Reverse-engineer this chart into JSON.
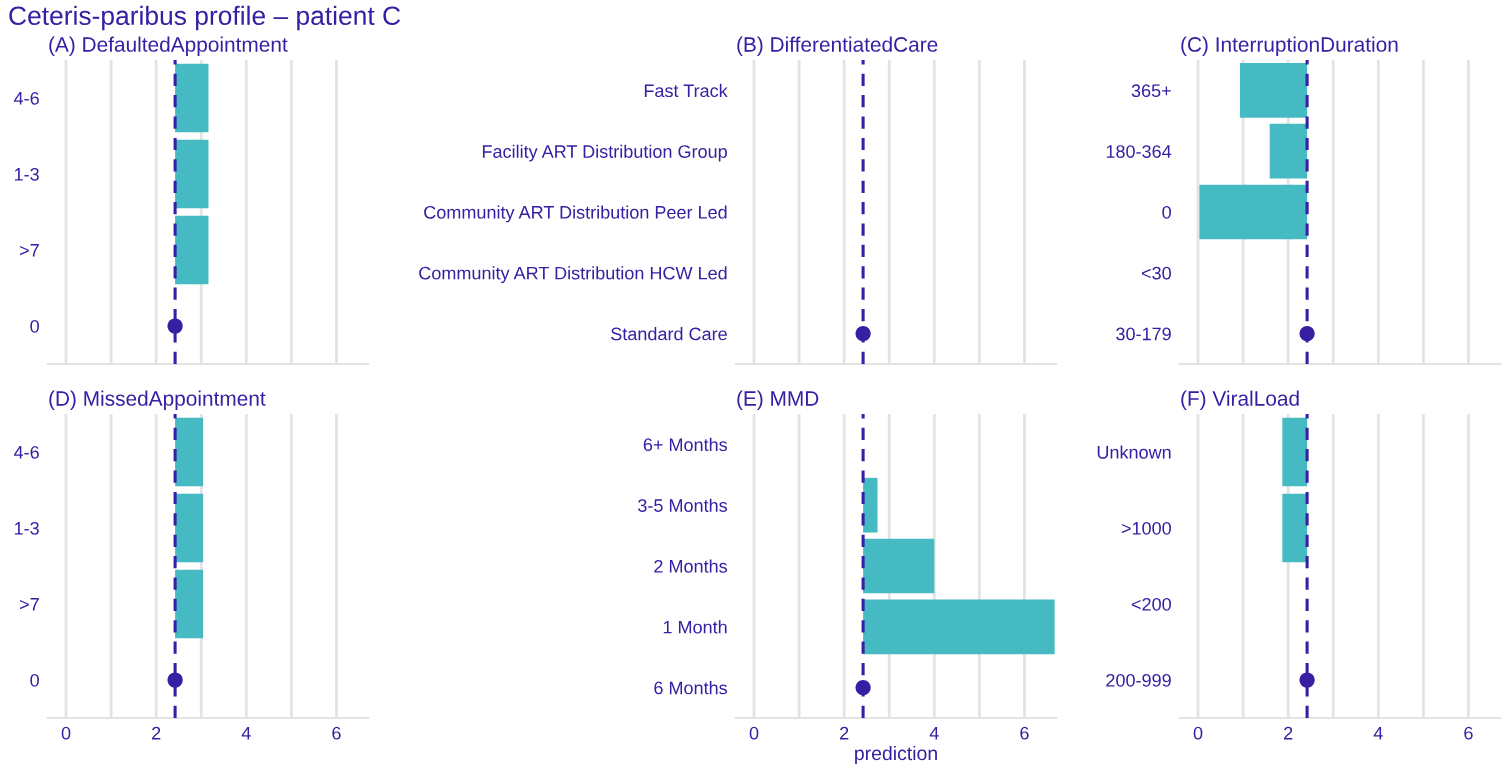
{
  "chart_data": [
    {
      "type": "bar",
      "orientation": "horizontal",
      "title": "(A) DefaultedAppointment",
      "annotations": [
        "Ceteris-paribus profile – patient C"
      ],
      "categories": [
        "4-6",
        "1-3",
        ">7",
        "0"
      ],
      "series": [
        {
          "color": "#46bac2",
          "base": [
            2.42,
            2.42,
            2.42,
            null
          ],
          "values": [
            0.74,
            0.74,
            0.74,
            null
          ]
        },
        {
          "type": "scatter",
          "color": "#371ea3",
          "values": [
            null,
            null,
            null,
            2.42
          ]
        }
      ],
      "xlim": [
        -0.4,
        6.7
      ],
      "xticks": [
        0,
        {
          "value": 1,
          "label": null
        },
        2,
        {
          "value": 3,
          "label": null
        },
        4,
        {
          "value": 5,
          "label": null
        },
        6
      ],
      "grid": "x",
      "tick_labels": "y",
      "ref_lines": [
        {
          "axis": "x",
          "value": 2.42,
          "color": "#371ea3",
          "line_style": "dashed"
        }
      ]
    },
    {
      "type": "bar",
      "orientation": "horizontal",
      "title": "(B) DifferentiatedCare",
      "categories": [
        "Fast Track",
        "Facility ART Distribution Group",
        "Community ART Distribution Peer Led",
        "Community ART Distribution HCW Led",
        "Standard Care"
      ],
      "series": [
        {
          "type": "scatter",
          "color": "#371ea3",
          "values": [
            null,
            null,
            null,
            null,
            2.42
          ]
        }
      ],
      "xlim": [
        -0.4,
        6.7
      ],
      "xticks": [
        0,
        {
          "value": 1,
          "label": null
        },
        2,
        {
          "value": 3,
          "label": null
        },
        4,
        {
          "value": 5,
          "label": null
        },
        6
      ],
      "grid": "x",
      "tick_labels": "y",
      "ref_lines": [
        {
          "axis": "x",
          "value": 2.42,
          "color": "#371ea3",
          "line_style": "dashed"
        }
      ]
    },
    {
      "type": "bar",
      "orientation": "horizontal",
      "title": "(C) InterruptionDuration",
      "categories": [
        "365+",
        "180-364",
        "0",
        "<30",
        "30-179"
      ],
      "series": [
        {
          "color": "#46bac2",
          "base": [
            0.93,
            1.59,
            0.03,
            null,
            null
          ],
          "values": [
            1.49,
            0.83,
            2.39,
            null,
            null
          ]
        },
        {
          "type": "scatter",
          "color": "#371ea3",
          "values": [
            null,
            null,
            null,
            null,
            2.42
          ]
        }
      ],
      "xlim": [
        -0.4,
        6.7
      ],
      "xticks": [
        0,
        {
          "value": 1,
          "label": null
        },
        2,
        {
          "value": 3,
          "label": null
        },
        4,
        {
          "value": 5,
          "label": null
        },
        6
      ],
      "grid": "x",
      "tick_labels": "y",
      "ref_lines": [
        {
          "axis": "x",
          "value": 2.42,
          "color": "#371ea3",
          "line_style": "dashed"
        }
      ]
    },
    {
      "type": "bar",
      "orientation": "horizontal",
      "title": "(D) MissedAppointment",
      "categories": [
        "4-6",
        "1-3",
        ">7",
        "0"
      ],
      "series": [
        {
          "color": "#46bac2",
          "base": [
            2.42,
            2.42,
            2.42,
            null
          ],
          "values": [
            0.62,
            0.62,
            0.62,
            null
          ]
        },
        {
          "type": "scatter",
          "color": "#371ea3",
          "values": [
            null,
            null,
            null,
            2.42
          ]
        }
      ],
      "xlim": [
        -0.4,
        6.7
      ],
      "xticks": [
        0,
        {
          "value": 1,
          "label": null
        },
        2,
        {
          "value": 3,
          "label": null
        },
        4,
        {
          "value": 5,
          "label": null
        },
        6
      ],
      "grid": "x",
      "ref_lines": [
        {
          "axis": "x",
          "value": 2.42,
          "color": "#371ea3",
          "line_style": "dashed"
        }
      ]
    },
    {
      "type": "bar",
      "orientation": "horizontal",
      "title": "(E) MMD",
      "xlabel": "prediction",
      "categories": [
        "6+ Months",
        "3-5 Months",
        "2 Months",
        "1 Month",
        "6 Months"
      ],
      "series": [
        {
          "color": "#46bac2",
          "base": [
            null,
            2.42,
            2.42,
            2.42,
            null
          ],
          "values": [
            null,
            0.32,
            1.58,
            4.25,
            null
          ]
        },
        {
          "type": "scatter",
          "color": "#371ea3",
          "values": [
            null,
            null,
            null,
            null,
            2.42
          ]
        }
      ],
      "xlim": [
        -0.4,
        6.7
      ],
      "xticks": [
        0,
        {
          "value": 1,
          "label": null
        },
        2,
        {
          "value": 3,
          "label": null
        },
        4,
        {
          "value": 5,
          "label": null
        },
        6
      ],
      "grid": "x",
      "ref_lines": [
        {
          "axis": "x",
          "value": 2.42,
          "color": "#371ea3",
          "line_style": "dashed"
        }
      ]
    },
    {
      "type": "bar",
      "orientation": "horizontal",
      "title": "(F) ViralLoad",
      "categories": [
        "Unknown",
        ">1000",
        "<200",
        "200-999"
      ],
      "series": [
        {
          "color": "#46bac2",
          "base": [
            1.87,
            1.87,
            null,
            null
          ],
          "values": [
            0.55,
            0.55,
            null,
            null
          ]
        },
        {
          "type": "scatter",
          "color": "#371ea3",
          "values": [
            null,
            null,
            null,
            2.42
          ]
        }
      ],
      "xlim": [
        -0.4,
        6.7
      ],
      "xticks": [
        0,
        {
          "value": 1,
          "label": null
        },
        2,
        {
          "value": 3,
          "label": null
        },
        4,
        {
          "value": 5,
          "label": null
        },
        6
      ],
      "grid": "x",
      "ref_lines": [
        {
          "axis": "x",
          "value": 2.42,
          "color": "#371ea3",
          "line_style": "dashed"
        }
      ]
    }
  ]
}
